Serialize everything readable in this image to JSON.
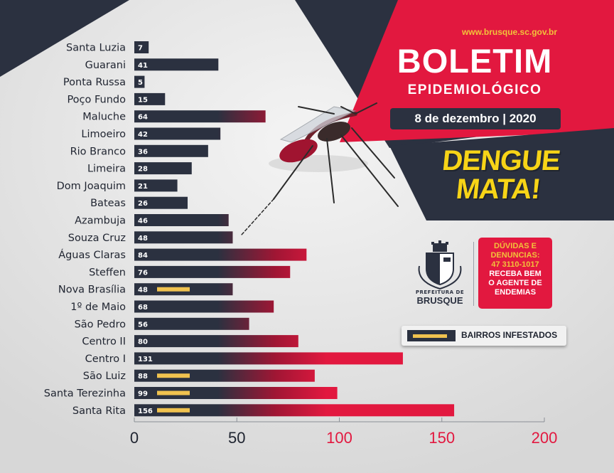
{
  "header": {
    "url": "www.brusque.sc.gov.br",
    "title": "BOLETIM",
    "subtitle": "EPIDEMIOLÓGICO",
    "date": "8 de dezembro | 2020"
  },
  "slogan": {
    "line1": "DENGUE",
    "line2": "MATA!"
  },
  "logo": {
    "prefeitura": "PREFEITURA DE",
    "city": "BRUSQUE"
  },
  "contact": {
    "line1": "DÚVIDAS E",
    "line2": "DENUNCIAS:",
    "phone": "47 3110-1017",
    "line3": "RECEBA BEM",
    "line4": "O AGENTE DE",
    "line5": "ENDEMIAS"
  },
  "legend": {
    "label": "BAIRROS INFESTADOS"
  },
  "colors": {
    "navy": "#2b3140",
    "red": "#e2183f",
    "yellow": "#f7d417",
    "infested_marker": "#f0c24f",
    "bg": "#e6e6e6"
  },
  "chart_data": {
    "type": "bar",
    "orientation": "horizontal",
    "categories": [
      "Santa Luzia",
      "Guarani",
      "Ponta Russa",
      "Poço Fundo",
      "Maluche",
      "Limoeiro",
      "Rio Branco",
      "Limeira",
      "Dom Joaquim",
      "Bateas",
      "Azambuja",
      "Souza Cruz",
      "Águas Claras",
      "Steffen",
      "Nova Brasília",
      "1º de Maio",
      "São Pedro",
      "Centro II",
      "Centro I",
      "São Luiz",
      "Santa Terezinha",
      "Santa Rita"
    ],
    "values": [
      7,
      41,
      5,
      15,
      64,
      42,
      36,
      28,
      21,
      26,
      46,
      48,
      84,
      76,
      48,
      68,
      56,
      80,
      131,
      88,
      99,
      156
    ],
    "infested": [
      false,
      false,
      false,
      false,
      false,
      false,
      false,
      false,
      false,
      false,
      false,
      false,
      false,
      false,
      true,
      false,
      false,
      false,
      false,
      true,
      true,
      true
    ],
    "xlim": [
      0,
      200
    ],
    "xticks": [
      0,
      50,
      100,
      150,
      200
    ],
    "xtick_colors": [
      "#1f2430",
      "#1f2430",
      "#e2183f",
      "#e2183f",
      "#e2183f"
    ],
    "grid": false
  }
}
